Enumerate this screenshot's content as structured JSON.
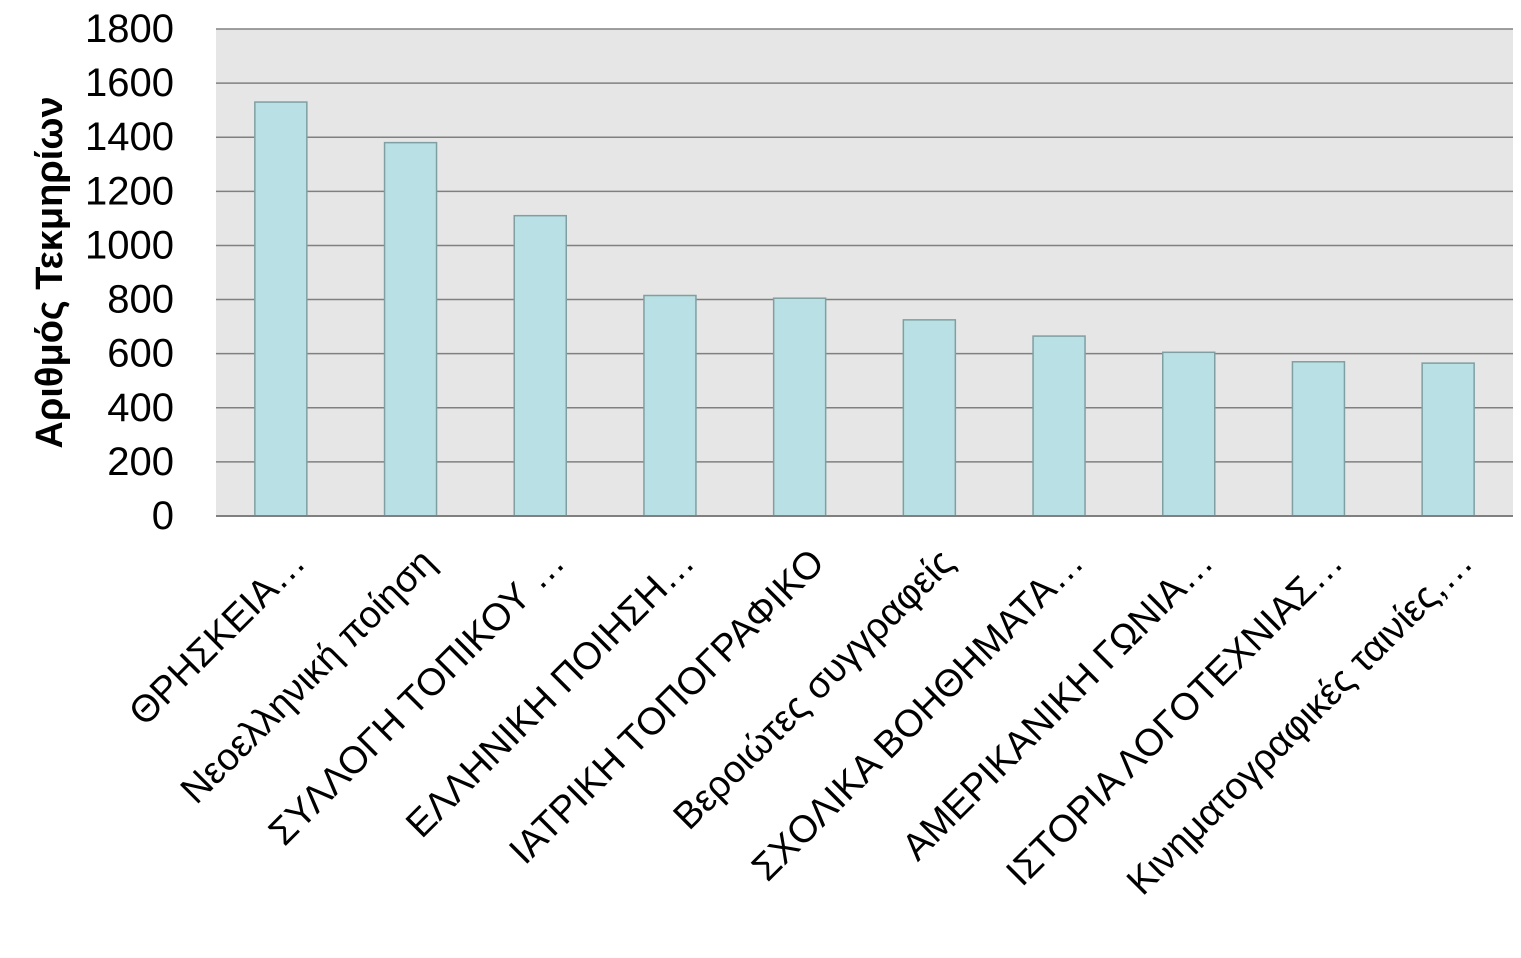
{
  "chart_data": {
    "type": "bar",
    "title": "",
    "xlabel": "",
    "ylabel": "Αριθμός Τεκμηρίων",
    "ylim": [
      0,
      1800
    ],
    "yticks": [
      0,
      200,
      400,
      600,
      800,
      1000,
      1200,
      1400,
      1600,
      1800
    ],
    "grid": true,
    "legend": "none",
    "categories": [
      "ΘΡΗΣΚΕΙΑ…",
      "Νεοελληνική ποίηση",
      "ΣΥΛΛΟΓΗ ΤΟΠΙΚΟΥ …",
      "ΕΛΛΗΝΙΚΗ ΠΟΙΗΣΗ…",
      "ΙΑΤΡΙΚΗ ΤΟΠΟΓΡΑΦΙΚΟ",
      "Βεροιώτες συγγραφείς",
      "ΣΧΟΛΙΚΑ ΒΟΗΘΗΜΑΤΑ…",
      "ΑΜΕΡΙΚΑΝΙΚΗ ΓΩΝΙΑ…",
      "ΙΣΤΟΡΙΑ ΛΟΓΟΤΕΧΝΙΑΣ…",
      "Κινηματογραφικές ταινίες,…"
    ],
    "values": [
      1530,
      1380,
      1110,
      815,
      805,
      725,
      665,
      605,
      570,
      565
    ],
    "colors": {
      "bar_fill": "#b9e0e4",
      "bar_stroke": "#7f9fa2",
      "plot_background": "#e6e6e6",
      "grid": "#808080",
      "axis": "#808080",
      "text": "#000000"
    }
  }
}
